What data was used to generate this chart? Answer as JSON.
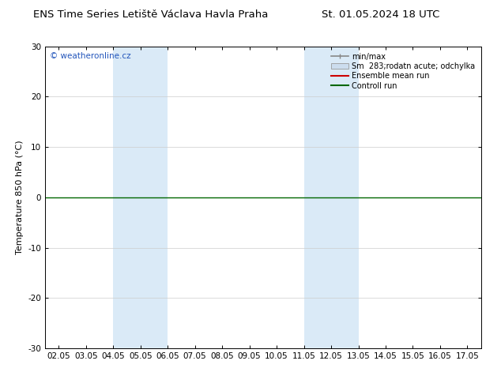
{
  "title_left": "ENS Time Series Letiště Václava Havla Praha",
  "title_right": "St. 01.05.2024 18 UTC",
  "ylabel": "Temperature 850 hPa (°C)",
  "watermark": "© weatheronline.cz",
  "ylim": [
    -30,
    30
  ],
  "yticks": [
    -30,
    -20,
    -10,
    0,
    10,
    20,
    30
  ],
  "xtick_labels": [
    "02.05",
    "03.05",
    "04.05",
    "05.05",
    "06.05",
    "07.05",
    "08.05",
    "09.05",
    "10.05",
    "11.05",
    "12.05",
    "13.05",
    "14.05",
    "15.05",
    "16.05",
    "17.05"
  ],
  "shaded_regions": [
    {
      "xstart": 2,
      "xend": 4,
      "color": "#daeaf7"
    },
    {
      "xstart": 9,
      "xend": 11,
      "color": "#daeaf7"
    }
  ],
  "zero_line_y": 0,
  "zero_line_color": "#006600",
  "legend_entries": [
    {
      "label": "min/max",
      "color": "#888888",
      "type": "hline"
    },
    {
      "label": "Sm  283;rodatn acute; odchylka",
      "color": "#ccddee",
      "type": "box"
    },
    {
      "label": "Ensemble mean run",
      "color": "#cc0000",
      "type": "line"
    },
    {
      "label": "Controll run",
      "color": "#006600",
      "type": "line"
    }
  ],
  "background_color": "#ffffff",
  "plot_bg_color": "#ffffff",
  "border_color": "#000000",
  "grid_color": "#cccccc",
  "title_fontsize": 9.5,
  "ylabel_fontsize": 8,
  "tick_fontsize": 7.5,
  "watermark_fontsize": 7.5,
  "legend_fontsize": 7
}
